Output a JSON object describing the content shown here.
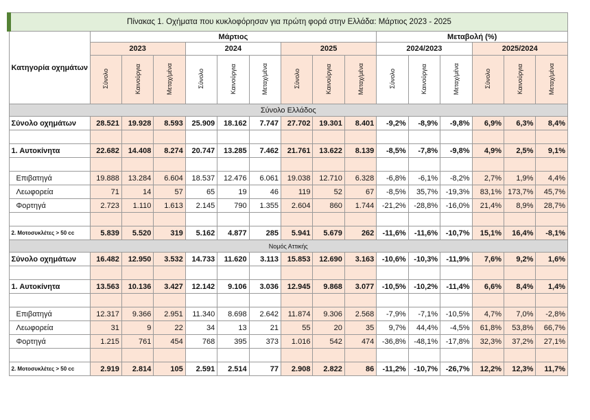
{
  "title": "Πίνακας 1. Οχήματα που κυκλοφόρησαν για πρώτη φορά στην Ελλάδα: Μάρτιος 2023 - 2025",
  "header": {
    "category": "Κατηγορία οχημάτων",
    "groups": [
      {
        "title": "Μάρτιος",
        "years": [
          "2023",
          "2024",
          "2025"
        ]
      },
      {
        "title": "Μεταβολή (%)",
        "years": [
          "2024/2023",
          "2025/2024"
        ]
      }
    ],
    "columns": [
      "Σύνολο",
      "Καινούργια",
      "Μεταχ/μένα"
    ]
  },
  "sections": [
    {
      "title": "Σύνολο Ελλάδος",
      "groups": [
        [
          {
            "label": "Σύνολο οχημάτων",
            "cells": [
              "28.521",
              "19.928",
              "8.593",
              "25.909",
              "18.162",
              "7.747",
              "27.702",
              "19.301",
              "8.401",
              "-9,2%",
              "-8,9%",
              "-9,8%",
              "6,9%",
              "6,3%",
              "8,4%"
            ]
          }
        ],
        [
          {
            "label": "1. Αυτοκίνητα",
            "cells": [
              "22.682",
              "14.408",
              "8.274",
              "20.747",
              "13.285",
              "7.462",
              "21.761",
              "13.622",
              "8.139",
              "-8,5%",
              "-7,8%",
              "-9,8%",
              "4,9%",
              "2,5%",
              "9,1%"
            ]
          }
        ],
        [
          {
            "label": "Επιβατηγά",
            "cells": [
              "19.888",
              "13.284",
              "6.604",
              "18.537",
              "12.476",
              "6.061",
              "19.038",
              "12.710",
              "6.328",
              "-6,8%",
              "-6,1%",
              "-8,2%",
              "2,7%",
              "1,9%",
              "4,4%"
            ]
          },
          {
            "label": "Λεωφορεία",
            "cells": [
              "71",
              "14",
              "57",
              "65",
              "19",
              "46",
              "119",
              "52",
              "67",
              "-8,5%",
              "35,7%",
              "-19,3%",
              "83,1%",
              "173,7%",
              "45,7%"
            ]
          },
          {
            "label": "Φορτηγά",
            "cells": [
              "2.723",
              "1.110",
              "1.613",
              "2.145",
              "790",
              "1.355",
              "2.604",
              "860",
              "1.744",
              "-21,2%",
              "-28,8%",
              "-16,0%",
              "21,4%",
              "8,9%",
              "28,7%"
            ]
          }
        ],
        [
          {
            "label": "2. Μοτοσυκλέτες > 50 cc",
            "cells": [
              "5.839",
              "5.520",
              "319",
              "5.162",
              "4.877",
              "285",
              "5.941",
              "5.679",
              "262",
              "-11,6%",
              "-11,6%",
              "-10,7%",
              "15,1%",
              "16,4%",
              "-8,1%"
            ]
          }
        ]
      ]
    },
    {
      "title": "Νομός Αττικής",
      "groups": [
        [
          {
            "label": "Σύνολο οχημάτων",
            "cells": [
              "16.482",
              "12.950",
              "3.532",
              "14.733",
              "11.620",
              "3.113",
              "15.853",
              "12.690",
              "3.163",
              "-10,6%",
              "-10,3%",
              "-11,9%",
              "7,6%",
              "9,2%",
              "1,6%"
            ]
          }
        ],
        [
          {
            "label": "1. Αυτοκίνητα",
            "cells": [
              "13.563",
              "10.136",
              "3.427",
              "12.142",
              "9.106",
              "3.036",
              "12.945",
              "9.868",
              "3.077",
              "-10,5%",
              "-10,2%",
              "-11,4%",
              "6,6%",
              "8,4%",
              "1,4%"
            ]
          }
        ],
        [
          {
            "label": "Επιβατηγά",
            "cells": [
              "12.317",
              "9.366",
              "2.951",
              "11.340",
              "8.698",
              "2.642",
              "11.874",
              "9.306",
              "2.568",
              "-7,9%",
              "-7,1%",
              "-10,5%",
              "4,7%",
              "7,0%",
              "-2,8%"
            ]
          },
          {
            "label": "Λεωφορεία",
            "cells": [
              "31",
              "9",
              "22",
              "34",
              "13",
              "21",
              "55",
              "20",
              "35",
              "9,7%",
              "44,4%",
              "-4,5%",
              "61,8%",
              "53,8%",
              "66,7%"
            ]
          },
          {
            "label": "Φορτηγά",
            "cells": [
              "1.215",
              "761",
              "454",
              "768",
              "395",
              "373",
              "1.016",
              "542",
              "474",
              "-36,8%",
              "-48,1%",
              "-17,8%",
              "32,3%",
              "37,2%",
              "27,1%"
            ]
          }
        ],
        [
          {
            "label": "2. Μοτοσυκλέτες > 50 cc",
            "cells": [
              "2.919",
              "2.814",
              "105",
              "2.591",
              "2.514",
              "77",
              "2.908",
              "2.822",
              "86",
              "-11,2%",
              "-10,7%",
              "-26,7%",
              "12,2%",
              "12,3%",
              "11,7%"
            ]
          }
        ]
      ]
    }
  ]
}
